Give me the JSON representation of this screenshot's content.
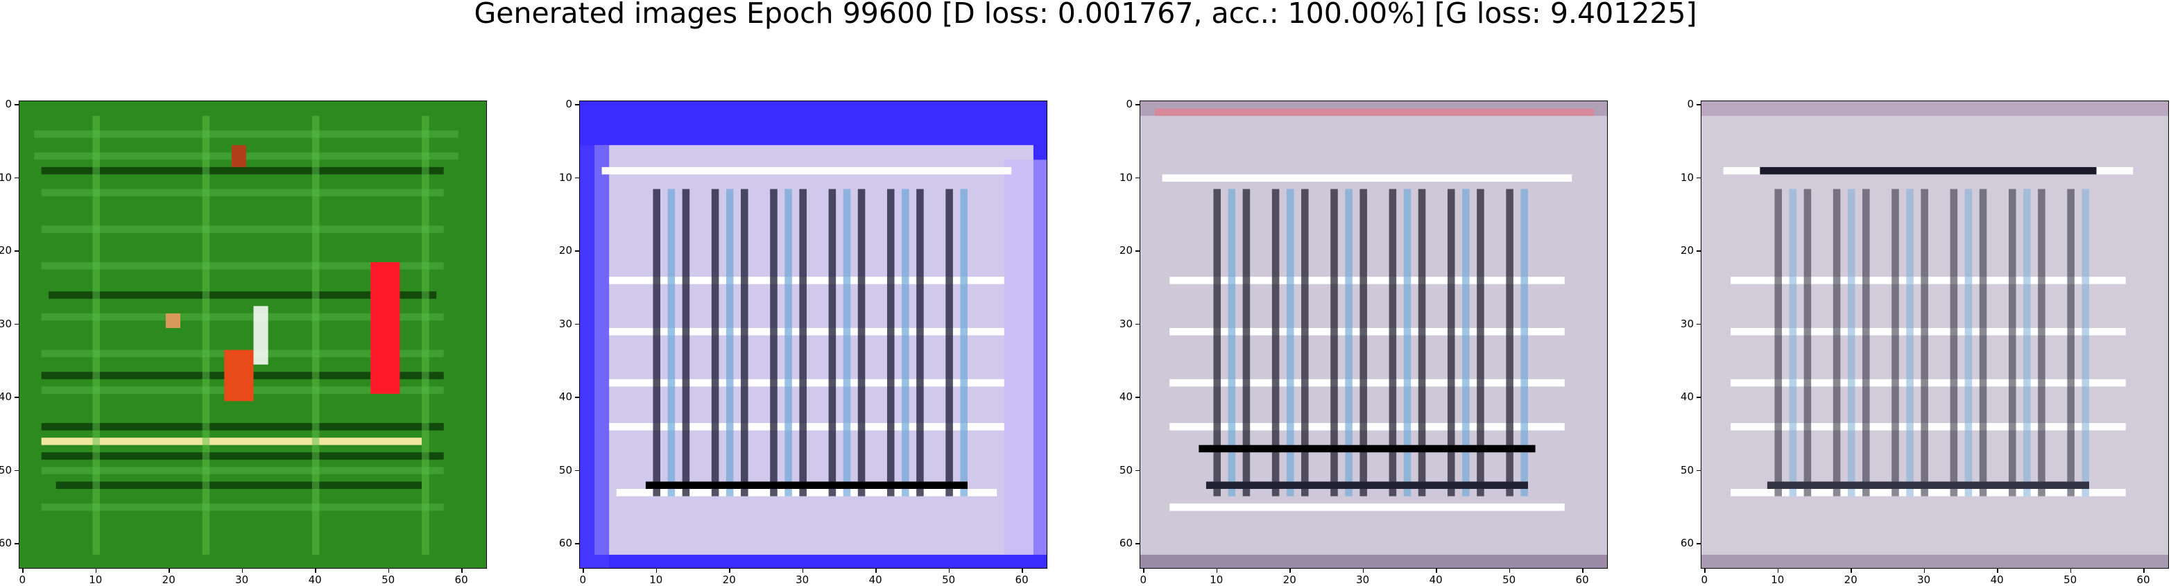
{
  "title": "Generated images Epoch 99600 [D loss: 0.001767, acc.: 100.00%] [G loss: 9.401225]",
  "axis": {
    "x_ticks": [
      "0",
      "10",
      "20",
      "30",
      "40",
      "50",
      "60"
    ],
    "y_ticks": [
      "0",
      "10",
      "20",
      "30",
      "40",
      "50",
      "60"
    ]
  },
  "panels": [
    {
      "base": "#2d8a1e",
      "line": "#b7e8a8",
      "dark": "#0c3a08"
    },
    {
      "base": "#d9d2ea",
      "line": "#ffffff",
      "dark": "#1a1a33",
      "edge": "#3a2cff"
    },
    {
      "base": "#cfc8d8",
      "line": "#ffffff",
      "dark": "#1b1b2a",
      "edge": "#d98a9a"
    },
    {
      "base": "#d2cbd9",
      "line": "#ffffff",
      "dark": "#2a2a3a",
      "edge": "#b9a8bf"
    }
  ]
}
